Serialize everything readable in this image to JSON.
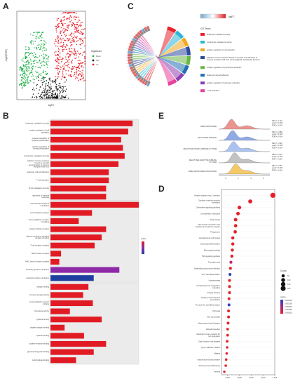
{
  "panels": {
    "A": "A",
    "B": "B",
    "C": "C",
    "D": "D",
    "E": "E"
  },
  "volcano": {
    "xlabel": "logFC",
    "ylabel": "-log10(FDR)",
    "legend_title": "Significant",
    "legend": [
      {
        "label": "Down",
        "color": "#22b14c"
      },
      {
        "label": "Not",
        "color": "#111111"
      },
      {
        "label": "Up",
        "color": "#e8212b"
      }
    ]
  },
  "chord": {
    "scale_title": "logFC",
    "legend_title": "GO Terms",
    "terms": [
      {
        "label": "leukocyte mediated immunity",
        "color": "#e8212b"
      },
      {
        "label": "lymphocyte mediated immunity",
        "color": "#29b7d6"
      },
      {
        "label": "positive regulation of cell activation",
        "color": "#f2a81d"
      },
      {
        "label": "adaptive immune response based on somatic recombination of immune receptors built from immunoglobulin superfamily domains",
        "color": "#2e4a9e"
      },
      {
        "label": "positive regulation of lymphocyte activation",
        "color": "#6ab744"
      },
      {
        "label": "leukocyte cell-cell adhesion",
        "color": "#1f6fb5"
      },
      {
        "label": "positive regulation of leukocyte activation",
        "color": "#8e3fb0"
      },
      {
        "label": "T cell activation",
        "color": "#e6419c"
      }
    ]
  },
  "go_bar": {
    "color_bar_title": "pvalue",
    "groups": [
      {
        "terms": [
          "leukocyte mediated immunity",
          "positive regulation of cell activation",
          "positive regulation of lymphocyte activation",
          "positive regulation of leukocyte activation",
          "lymphocyte mediated immunity",
          "adaptive immune response based on somatic recombination of immune receptors built from immunoglobulin superfamily domains",
          "leukocyte cell-cell adhesion",
          "T cell activation",
          "B cell mediated immunity",
          "activation of immune response"
        ],
        "values": [
          93,
          88,
          80,
          82,
          84,
          77,
          66,
          66,
          63,
          63
        ],
        "colors": [
          "#e11b24",
          "#e11b24",
          "#e11b24",
          "#e11b24",
          "#e11b24",
          "#e11b24",
          "#e11b24",
          "#e11b24",
          "#e11b24",
          "#e11b24"
        ]
      },
      {
        "terms": [
          "external side of plasma membrane",
          "immunological synapse",
          "immunoglobulin complex, circulating",
          "antigen binding complex",
          "plasma membrane signaling receptor complex",
          "T cell receptor complex",
          "MHC protein complex",
          "MHC class II protein complex",
          "secretory granule membrane",
          "endocytic vesicle membrane"
        ],
        "values": [
          100,
          47,
          32,
          63,
          58,
          50,
          12,
          10,
          78,
          49
        ],
        "colors": [
          "#e11b24",
          "#e11b24",
          "#e11b24",
          "#e11b24",
          "#e11b24",
          "#e11b24",
          "#e11b24",
          "#e11b24",
          "#8e2aa8",
          "#1f3fa0"
        ]
      },
      {
        "terms": [
          "antigen binding",
          "immune receptor activity",
          "immunoglobulin receptor binding",
          "chemokine activity",
          "cytokine activity",
          "peptide antigen binding",
          "cytokine binding",
          "cytokine receptor binding",
          "glycosaminoglycan binding",
          "carbohydrate binding"
        ],
        "values": [
          43,
          37,
          48,
          22,
          58,
          16,
          38,
          63,
          49,
          29
        ],
        "colors": [
          "#e11b24",
          "#e11b24",
          "#e11b24",
          "#e11b24",
          "#e11b24",
          "#e11b24",
          "#e11b24",
          "#e11b24",
          "#e11b24",
          "#e11b24"
        ]
      }
    ]
  },
  "ridge": {
    "series": [
      {
        "label": "NABA MATRISOME",
        "color": "#e8837a",
        "stats": [
          "NES = 2.143",
          "p.adj = 0.006",
          "FDR = 0.004"
        ]
      },
      {
        "label": "REACTOME DISEASE",
        "color": "#7b9be0",
        "stats": [
          "NES = 1.886",
          "p.adj = 0.006",
          "FDR = 0.004"
        ]
      },
      {
        "label": "REACTOME INNATE IMMUNE SYSTEM",
        "color": "#9cb8ec",
        "stats": [
          "NES = 1.922",
          "p.adj = 0.006",
          "FDR = 0.004"
        ]
      },
      {
        "label": "REACTOME ADAPTIVE IMMUNE SYSTEM",
        "color": "#b8b8b8",
        "stats": [
          "NES = 2.021",
          "p.adj = 0.006",
          "FDR = 0.004"
        ]
      },
      {
        "label": "NABA MATRISOME ASSOCIATED",
        "color": "#f2c14e",
        "stats": [
          "NES = 2.051",
          "p.adj = 0.006",
          "FDR = 0.004"
        ]
      }
    ],
    "x_ticks": [
      "0",
      "2",
      "4",
      "6"
    ]
  },
  "chart_data": {
    "type": "scatter",
    "title": "",
    "xlabel": "",
    "ylabel": "",
    "xlim": [
      0,
      0.125
    ],
    "x_ticks": [
      "0.025",
      "0.050",
      "0.075",
      "0.100",
      "0.125"
    ],
    "categories": [
      "Herpes simplex virus 1 infection",
      "Cytokine−cytokine receptor interaction",
      "Chemokine signaling pathway",
      "Cell adhesion molecules",
      "Tuberculosis",
      "Viral protein interaction with cytokine and cytokine receptor",
      "Phagosome",
      "Hematopoietic cell lineage",
      "Osteoclast differentiation",
      "Rheumatoid arthritis",
      "TNF signaling pathway",
      "Toxoplasmosis",
      "Staphylococcus aureus infection",
      "Th17 cell differentiation",
      "Leishmaniasis",
      "Complement and coagulation cascades",
      "Chagas disease",
      "Antigen processing and presentation",
      "Th1 and Th2 cell differentiation",
      "Pertussis",
      "Viral myocarditis",
      "Inflammatory bowel disease",
      "Allograft rejection",
      "Intestinal immune network for IgA production",
      "Graft−versus−host disease",
      "Type I diabetes mellitus",
      "Malaria",
      "Autoimmune thyroid disease",
      "Primary immunodeficiency",
      "Asthma"
    ],
    "x": [
      0.121,
      0.073,
      0.05,
      0.047,
      0.042,
      0.042,
      0.041,
      0.036,
      0.036,
      0.035,
      0.034,
      0.032,
      0.031,
      0.03,
      0.029,
      0.029,
      0.029,
      0.028,
      0.028,
      0.027,
      0.027,
      0.026,
      0.025,
      0.025,
      0.024,
      0.024,
      0.023,
      0.022,
      0.021,
      0.018
    ],
    "count": [
      220,
      110,
      80,
      70,
      70,
      60,
      60,
      50,
      50,
      45,
      45,
      40,
      35,
      35,
      35,
      35,
      35,
      30,
      30,
      30,
      30,
      30,
      25,
      25,
      25,
      20,
      20,
      20,
      20,
      15
    ],
    "pvalue_color": [
      "#e4212a",
      "#e4212a",
      "#e4212a",
      "#e4212a",
      "#e4212a",
      "#e4212a",
      "#e4212a",
      "#e4212a",
      "#e4212a",
      "#e4212a",
      "#e4212a",
      "#c0257a",
      "#e4212a",
      "#2f3fbf",
      "#e4212a",
      "#e4212a",
      "#e4212a",
      "#e4212a",
      "#2f3fbf",
      "#e4212a",
      "#e4212a",
      "#e4212a",
      "#e4212a",
      "#e4212a",
      "#e4212a",
      "#e4212a",
      "#e4212a",
      "#e4212a",
      "#e4212a",
      "#e4212a"
    ],
    "legend": {
      "count_title": "Count",
      "count_items": [
        "50",
        "100",
        "150",
        "200"
      ],
      "color_title": "pvalue",
      "color_items": [
        "0.000125",
        "0.000100",
        "0.000075",
        "0.000050",
        "0.000025"
      ]
    }
  }
}
